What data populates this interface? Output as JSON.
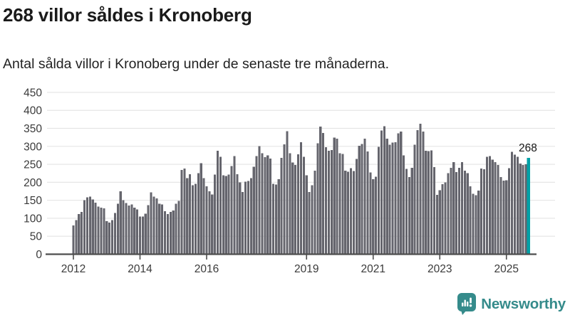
{
  "header": {
    "title": "268 villor såldes i Kronoberg",
    "subtitle": "Antal sålda villor i Kronoberg under de senaste tre månaderna."
  },
  "chart_data": {
    "type": "bar",
    "title": "268 villor såldes i Kronoberg",
    "subtitle": "Antal sålda villor i Kronoberg under de senaste tre månaderna.",
    "frequency": "monthly",
    "x_start_month": "2012-01",
    "x_end_month": "2025-09",
    "values": [
      80,
      95,
      112,
      118,
      150,
      158,
      160,
      152,
      143,
      132,
      130,
      128,
      92,
      88,
      95,
      115,
      140,
      175,
      150,
      142,
      135,
      138,
      130,
      125,
      105,
      105,
      113,
      136,
      172,
      160,
      155,
      140,
      138,
      120,
      112,
      118,
      122,
      140,
      148,
      234,
      238,
      212,
      222,
      192,
      196,
      225,
      253,
      212,
      189,
      175,
      166,
      221,
      288,
      271,
      219,
      217,
      221,
      245,
      273,
      222,
      200,
      173,
      202,
      204,
      212,
      243,
      273,
      301,
      281,
      270,
      275,
      266,
      196,
      194,
      209,
      268,
      305,
      342,
      281,
      255,
      248,
      278,
      311,
      271,
      219,
      173,
      192,
      232,
      308,
      355,
      337,
      298,
      288,
      290,
      324,
      321,
      281,
      279,
      232,
      229,
      239,
      231,
      265,
      302,
      306,
      321,
      286,
      227,
      209,
      216,
      299,
      344,
      356,
      321,
      304,
      310,
      311,
      336,
      341,
      275,
      237,
      215,
      240,
      304,
      345,
      363,
      341,
      288,
      287,
      289,
      242,
      165,
      178,
      195,
      200,
      225,
      240,
      256,
      228,
      240,
      256,
      232,
      225,
      189,
      168,
      164,
      177,
      238,
      236,
      271,
      273,
      263,
      256,
      248,
      215,
      205,
      206,
      239,
      285,
      277,
      271,
      252,
      248,
      250,
      268
    ],
    "ylim": [
      0,
      450
    ],
    "y_ticks": [
      0,
      50,
      100,
      150,
      200,
      250,
      300,
      350,
      400,
      450
    ],
    "x_tick_years": [
      2012,
      2014,
      2016,
      2019,
      2021,
      2023,
      2025
    ],
    "x_tick_labels": [
      "2012",
      "2014",
      "2016",
      "2019",
      "2021",
      "2023",
      "2025"
    ],
    "grid": true,
    "legend": "none",
    "bar_color": "#65656d",
    "highlight": {
      "index": 164,
      "month": "2025-09",
      "value": 268,
      "label": "268",
      "color": "#00a1a7"
    }
  },
  "branding": {
    "logo_text": "Newsworthy",
    "logo_icon": "newsworthy-chart-bubble-icon",
    "logo_color": "#358b8b"
  },
  "colors": {
    "background": "#ffffff",
    "title": "#1a1a1a",
    "subtitle": "#222222",
    "axis_line": "#4d4d4d",
    "gridline": "#e3e3e3",
    "tick_label": "#3a3a3a",
    "annotation": "#141414"
  }
}
